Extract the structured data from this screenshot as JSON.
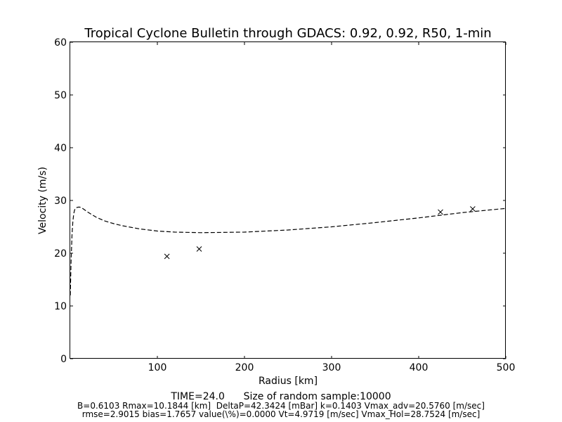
{
  "chart_data": {
    "type": "line",
    "title": "Tropical Cyclone Bulletin through GDACS: 0.92, 0.92, R50, 1-min",
    "xlabel": "Radius [km]",
    "ylabel": "Velocity (m/s)",
    "xlim": [
      0,
      500
    ],
    "ylim": [
      0,
      60
    ],
    "x_ticks": [
      100,
      200,
      300,
      400,
      500
    ],
    "y_ticks": [
      0,
      10,
      20,
      30,
      40,
      50,
      60
    ],
    "grid": false,
    "legend": "none",
    "series": [
      {
        "style": "dashed-line",
        "color": "#000000",
        "x": [
          0,
          1,
          2,
          3,
          4,
          5,
          6,
          8,
          10,
          12,
          15,
          20,
          30,
          40,
          50,
          60,
          80,
          100,
          120,
          150,
          200,
          250,
          300,
          350,
          400,
          450,
          500
        ],
        "y": [
          12.0,
          18.5,
          23.5,
          26.0,
          27.5,
          28.2,
          28.5,
          28.7,
          28.75,
          28.7,
          28.4,
          27.8,
          26.8,
          26.1,
          25.6,
          25.2,
          24.6,
          24.2,
          24.0,
          23.9,
          24.0,
          24.4,
          25.0,
          25.8,
          26.7,
          27.7,
          28.5
        ]
      },
      {
        "style": "x-markers",
        "color": "#000000",
        "x": [
          111,
          148,
          425,
          462
        ],
        "y": [
          19.4,
          20.8,
          27.8,
          28.4
        ]
      }
    ]
  },
  "footer": {
    "main": "TIME=24.0      Size of random sample:10000",
    "line1": "B=0.6103 Rmax=10.1844 [km]  DeltaP=42.3424 [mBar] k=0.1403 Vmax_adv=20.5760 [m/sec]",
    "line2": "rmse=2.9015 bias=1.7657 value(\\%)=0.0000 Vt=4.9719 [m/sec] Vmax_Hol=28.7524 [m/sec]"
  }
}
